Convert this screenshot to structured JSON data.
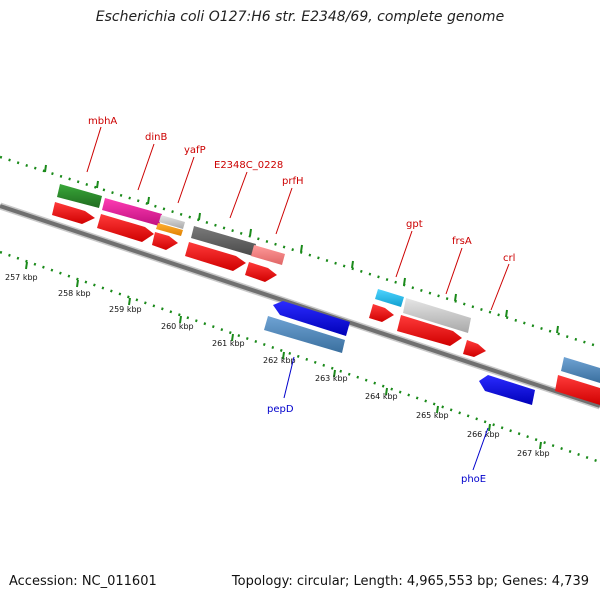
{
  "title": "Escherichia coli O127:H6 str. E2348/69, complete genome",
  "footer": {
    "accession": "Accession: NC_011601",
    "info": "Topology: circular; Length: 4,965,553 bp; Genes: 4,739"
  },
  "colors": {
    "backbone": "#808080",
    "ruler": "#1a8a1a",
    "forward_label": "#cc0000",
    "reverse_label": "#0000cc"
  },
  "ruler_labels": [
    "257 kbp",
    "258 kbp",
    "259 kbp",
    "260 kbp",
    "261 kbp",
    "262 kbp",
    "263 kbp",
    "264 kbp",
    "265 kbp",
    "266 kbp",
    "267 kbp"
  ],
  "forward_labels": [
    "mbhA",
    "dinB",
    "yafP",
    "E2348C_0228",
    "prfH",
    "gpt",
    "frsA",
    "crl"
  ],
  "reverse_labels": [
    "pepD",
    "phoE"
  ],
  "features": [
    {
      "name": "mbhA-homolog",
      "color": "#2e8b2e",
      "strand": "+"
    },
    {
      "name": "dinB-homolog",
      "color": "#e0199b",
      "strand": "+"
    },
    {
      "name": "yafP-homolog",
      "color": "#c8c8c8",
      "strand": "+"
    },
    {
      "name": "yafP-feature",
      "color": "#ff9900",
      "strand": "+"
    },
    {
      "name": "E2348C_0228-homolog",
      "color": "#606060",
      "strand": "+"
    },
    {
      "name": "prfH-homolog",
      "color": "#f08080",
      "strand": "+"
    },
    {
      "name": "gpt-homolog",
      "color": "#19c0f0",
      "strand": "+"
    },
    {
      "name": "frsA-homolog",
      "color": "#c8c8c8",
      "strand": "+"
    },
    {
      "name": "crl-homolog",
      "color": "#4682b4",
      "strand": "+"
    },
    {
      "name": "pepD-homolog",
      "color": "#4682b4",
      "strand": "-"
    },
    {
      "name": "pepD-gene",
      "color": "#0000ee",
      "strand": "-"
    },
    {
      "name": "phoE-gene",
      "color": "#0000ee",
      "strand": "-"
    },
    {
      "name": "cds",
      "color": "#ff0000",
      "strand": "+"
    }
  ]
}
